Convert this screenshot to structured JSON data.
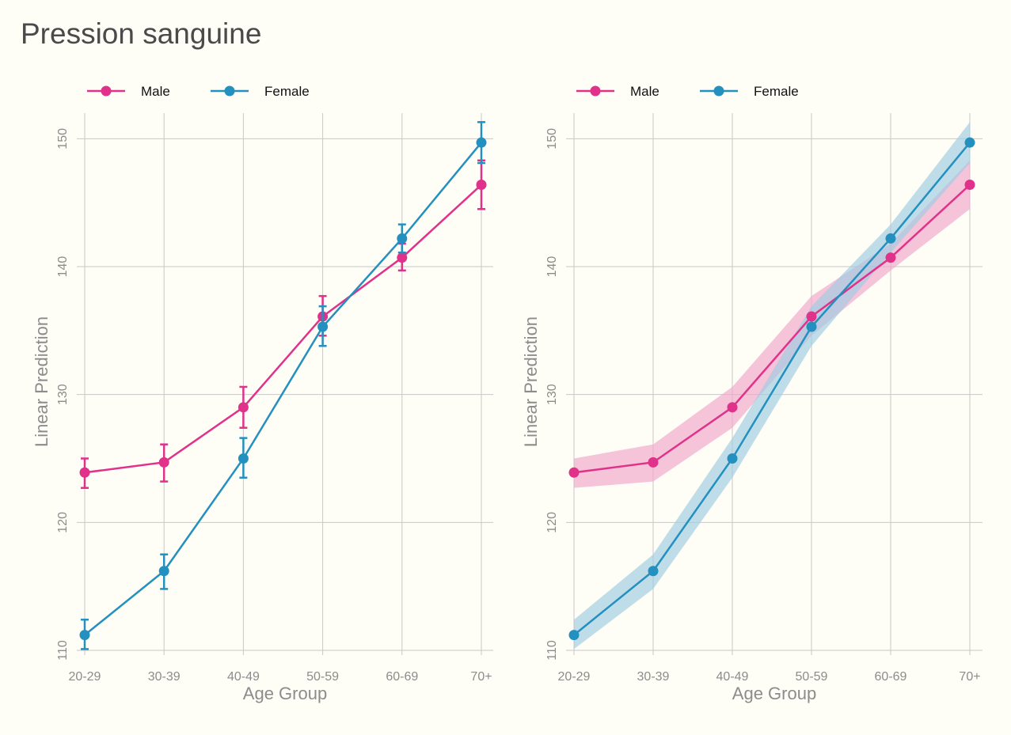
{
  "page": {
    "title": "Pression sanguine"
  },
  "colors": {
    "male": "#e0318b",
    "female": "#2490c0",
    "male_band": "#f0a6ca",
    "female_band": "#9ccde0",
    "grid": "#c8c8c8",
    "background": "#fefdf6"
  },
  "chart_data": [
    {
      "type": "line",
      "style": "error-bars",
      "title": "",
      "xlabel": "Age Group",
      "ylabel": "Linear Prediction",
      "categories": [
        "20-29",
        "30-39",
        "40-49",
        "50-59",
        "60-69",
        "70+"
      ],
      "ylim": [
        110,
        152
      ],
      "yticks": [
        110,
        120,
        130,
        140,
        150
      ],
      "grid": true,
      "legend": "top-left",
      "series": [
        {
          "name": "Male",
          "color_key": "male",
          "values": [
            123.9,
            124.7,
            129.0,
            136.1,
            140.7,
            146.4
          ],
          "lower": [
            122.7,
            123.2,
            127.4,
            134.6,
            139.7,
            144.5
          ],
          "upper": [
            125.0,
            126.1,
            130.6,
            137.7,
            141.8,
            148.3
          ]
        },
        {
          "name": "Female",
          "color_key": "female",
          "values": [
            111.2,
            116.2,
            125.0,
            135.3,
            142.2,
            149.7
          ],
          "lower": [
            110.1,
            114.8,
            123.5,
            133.8,
            141.1,
            148.1
          ],
          "upper": [
            112.4,
            117.5,
            126.6,
            136.9,
            143.3,
            151.3
          ]
        }
      ]
    },
    {
      "type": "line",
      "style": "confidence-band",
      "title": "",
      "xlabel": "Age Group",
      "ylabel": "Linear Prediction",
      "categories": [
        "20-29",
        "30-39",
        "40-49",
        "50-59",
        "60-69",
        "70+"
      ],
      "ylim": [
        110,
        152
      ],
      "yticks": [
        110,
        120,
        130,
        140,
        150
      ],
      "grid": true,
      "legend": "top-left",
      "series": [
        {
          "name": "Male",
          "color_key": "male",
          "values": [
            123.9,
            124.7,
            129.0,
            136.1,
            140.7,
            146.4
          ],
          "lower": [
            122.7,
            123.2,
            127.4,
            134.6,
            139.7,
            144.5
          ],
          "upper": [
            125.0,
            126.1,
            130.6,
            137.7,
            141.8,
            148.3
          ]
        },
        {
          "name": "Female",
          "color_key": "female",
          "values": [
            111.2,
            116.2,
            125.0,
            135.3,
            142.2,
            149.7
          ],
          "lower": [
            110.1,
            114.8,
            123.5,
            133.8,
            141.1,
            148.1
          ],
          "upper": [
            112.4,
            117.5,
            126.6,
            136.9,
            143.3,
            151.3
          ]
        }
      ]
    }
  ]
}
